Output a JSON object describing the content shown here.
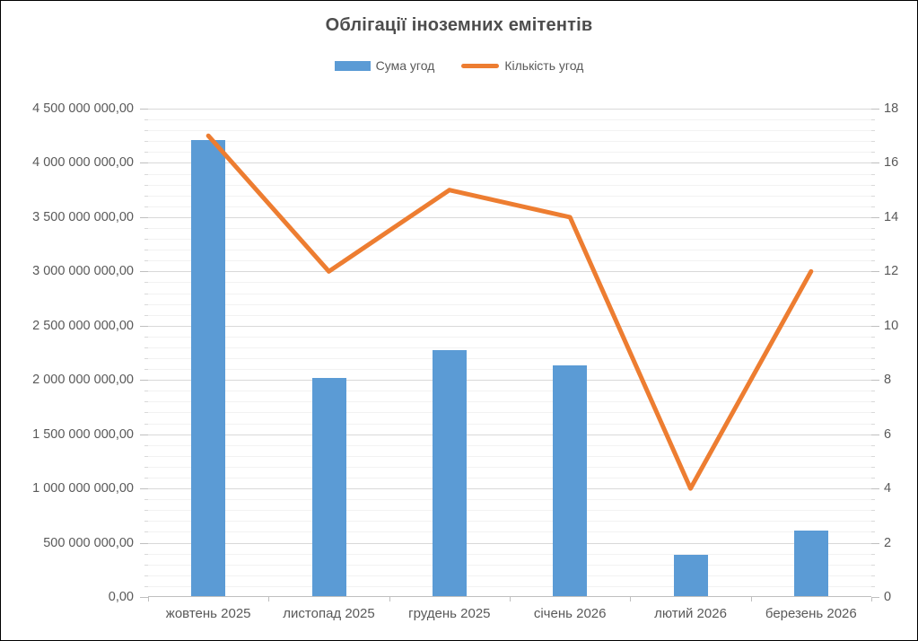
{
  "window": {
    "background": "#ffffff",
    "border_color": "#000000",
    "text_color": "#595959"
  },
  "chart_data": {
    "type": "combo (bar + line)",
    "title": "Облігації іноземних емітентів",
    "categories": [
      "жовтень 2025",
      "листопад 2025",
      "грудень 2025",
      "січень 2026",
      "лютий 2026",
      "березень 2026"
    ],
    "series": [
      {
        "name": "Сума угод",
        "type": "bar",
        "axis": "left",
        "color": "#5B9BD5",
        "values": [
          4200000000,
          2010000000,
          2270000000,
          2130000000,
          380000000,
          600000000
        ]
      },
      {
        "name": "Кількість угод",
        "type": "line",
        "axis": "right",
        "color": "#ED7D31",
        "values": [
          17,
          12,
          15,
          14,
          4,
          12
        ]
      }
    ],
    "axis_left": {
      "min": 0,
      "max": 4500000000,
      "major_step": 500000000,
      "minor_step": 100000000,
      "tick_label_example": "4 500 000 000,00",
      "format": "space thousands separator, comma decimal, 2 decimals"
    },
    "axis_right": {
      "min": 0,
      "max": 18,
      "major_step": 2
    },
    "grid": {
      "major_color": "#d9d9d9",
      "minor_color": "#f2f2f2",
      "axis_line_color": "#BFBFBF"
    },
    "legend_position": "top",
    "title_color": "#4d4d4d"
  }
}
